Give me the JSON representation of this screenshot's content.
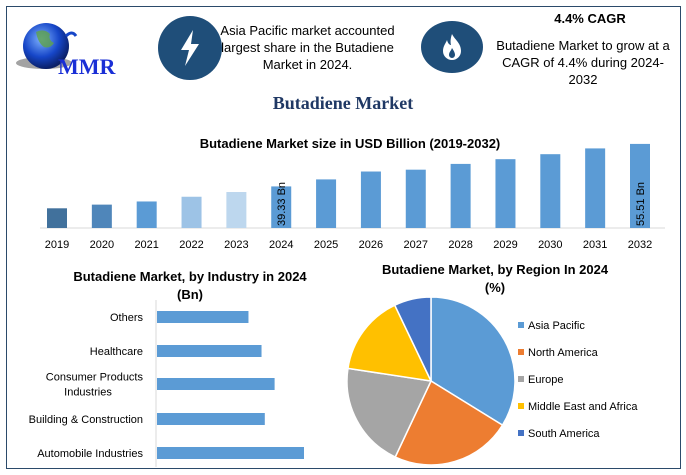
{
  "logo": {
    "text": "MMR"
  },
  "header": {
    "info1": "Asia Pacific market accounted largest share in the Butadiene Market in 2024.",
    "cagr_title": "4.4% CAGR",
    "info2": "Butadiene Market to grow at a CAGR of 4.4% during 2024-2032",
    "icons": [
      "lightning-icon",
      "flame-icon"
    ]
  },
  "main_title": "Butadiene Market",
  "colors": {
    "navy": "#1f4e79",
    "bar": "#5b9bd5",
    "title": "#1f3864"
  },
  "chart_data": [
    {
      "type": "bar",
      "title": "Butadiene Market size in USD Billion (2019-2032)",
      "categories": [
        "2019",
        "2020",
        "2021",
        "2022",
        "2023",
        "2024",
        "2025",
        "2026",
        "2027",
        "2028",
        "2029",
        "2030",
        "2031",
        "2032"
      ],
      "values": [
        31.0,
        32.4,
        33.6,
        35.4,
        37.2,
        39.33,
        42.0,
        45.0,
        45.7,
        47.9,
        49.7,
        51.6,
        53.8,
        55.51
      ],
      "colors": [
        "#41719c",
        "#4f86ba",
        "#5b9bd5",
        "#9dc3e6",
        "#bdd7ee",
        "#5b9bd5",
        "#5b9bd5",
        "#5b9bd5",
        "#5b9bd5",
        "#5b9bd5",
        "#5b9bd5",
        "#5b9bd5",
        "#5b9bd5",
        "#5b9bd5"
      ],
      "data_labels": {
        "2024": "39.33 Bn",
        "2032": "55.51 Bn"
      },
      "ylim": [
        23.5,
        57
      ],
      "grid": false
    },
    {
      "type": "bar",
      "orientation": "horizontal",
      "title": "Butadiene Market, by Industry in 2024 (Bn)",
      "title_lines": [
        "Butadiene Market, by Industry in 2024",
        "(Bn)"
      ],
      "categories": [
        "Others",
        "Healthcare",
        "Consumer Products Industries",
        "Building & Construction",
        "Automobile Industries"
      ],
      "category_lines": [
        [
          "Others"
        ],
        [
          "Healthcare"
        ],
        [
          "Consumer Products",
          "Industries"
        ],
        [
          "Building & Construction"
        ],
        [
          "Automobile Industries"
        ]
      ],
      "values": [
        2.8,
        3.2,
        3.6,
        3.3,
        4.5
      ],
      "color": "#5b9bd5",
      "grid": false
    },
    {
      "type": "pie",
      "title": "Butadiene Market, by Region In 2024 (%)",
      "title_lines": [
        "Butadiene Market, by Region In 2024",
        "(%)"
      ],
      "labels": [
        "Asia Pacific",
        "North America",
        "Europe",
        "Middle East and Africa",
        "South America"
      ],
      "values": [
        33.8,
        23.2,
        20.4,
        15.5,
        7.1
      ],
      "colors": [
        "#5b9bd5",
        "#ed7d31",
        "#a5a5a5",
        "#ffc000",
        "#4472c4"
      ],
      "legend": "right"
    }
  ]
}
